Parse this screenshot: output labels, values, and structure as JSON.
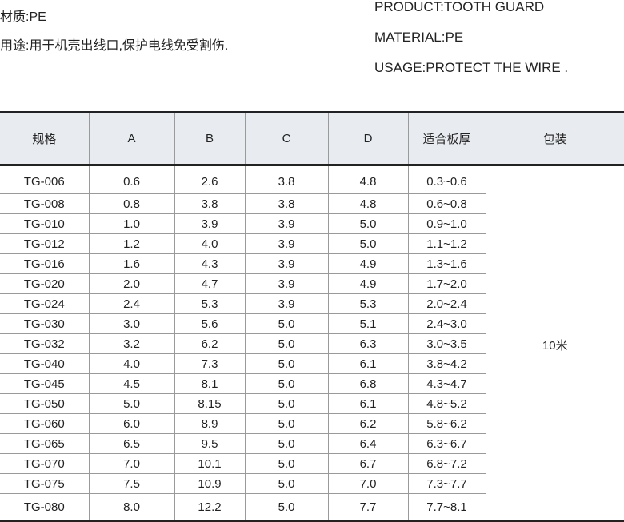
{
  "intro_cn": {
    "material": "材质:PE",
    "usage": "用途:用于机壳出线口,保护电线免受割伤."
  },
  "intro_en": {
    "product": "PRODUCT:TOOTH GUARD",
    "material": "MATERIAL:PE",
    "usage": "USAGE:PROTECT THE WIRE ."
  },
  "table": {
    "headers": [
      "规格",
      "A",
      "B",
      "C",
      "D",
      "适合板厚",
      "包装"
    ],
    "packaging": "10米",
    "rows": [
      [
        "TG-006",
        "0.6",
        "2.6",
        "3.8",
        "4.8",
        "0.3~0.6"
      ],
      [
        "TG-008",
        "0.8",
        "3.8",
        "3.8",
        "4.8",
        "0.6~0.8"
      ],
      [
        "TG-010",
        "1.0",
        "3.9",
        "3.9",
        "5.0",
        "0.9~1.0"
      ],
      [
        "TG-012",
        "1.2",
        "4.0",
        "3.9",
        "5.0",
        "1.1~1.2"
      ],
      [
        "TG-016",
        "1.6",
        "4.3",
        "3.9",
        "4.9",
        "1.3~1.6"
      ],
      [
        "TG-020",
        "2.0",
        "4.7",
        "3.9",
        "4.9",
        "1.7~2.0"
      ],
      [
        "TG-024",
        "2.4",
        "5.3",
        "3.9",
        "5.3",
        "2.0~2.4"
      ],
      [
        "TG-030",
        "3.0",
        "5.6",
        "5.0",
        "5.1",
        "2.4~3.0"
      ],
      [
        "TG-032",
        "3.2",
        "6.2",
        "5.0",
        "6.3",
        "3.0~3.5"
      ],
      [
        "TG-040",
        "4.0",
        "7.3",
        "5.0",
        "6.1",
        "3.8~4.2"
      ],
      [
        "TG-045",
        "4.5",
        "8.1",
        "5.0",
        "6.8",
        "4.3~4.7"
      ],
      [
        "TG-050",
        "5.0",
        "8.15",
        "5.0",
        "6.1",
        "4.8~5.2"
      ],
      [
        "TG-060",
        "6.0",
        "8.9",
        "5.0",
        "6.2",
        "5.8~6.2"
      ],
      [
        "TG-065",
        "6.5",
        "9.5",
        "5.0",
        "6.4",
        "6.3~6.7"
      ],
      [
        "TG-070",
        "7.0",
        "10.1",
        "5.0",
        "6.7",
        "6.8~7.2"
      ],
      [
        "TG-075",
        "7.5",
        "10.9",
        "5.0",
        "7.0",
        "7.3~7.7"
      ],
      [
        "TG-080",
        "8.0",
        "12.2",
        "5.0",
        "7.7",
        "7.7~8.1"
      ]
    ]
  }
}
